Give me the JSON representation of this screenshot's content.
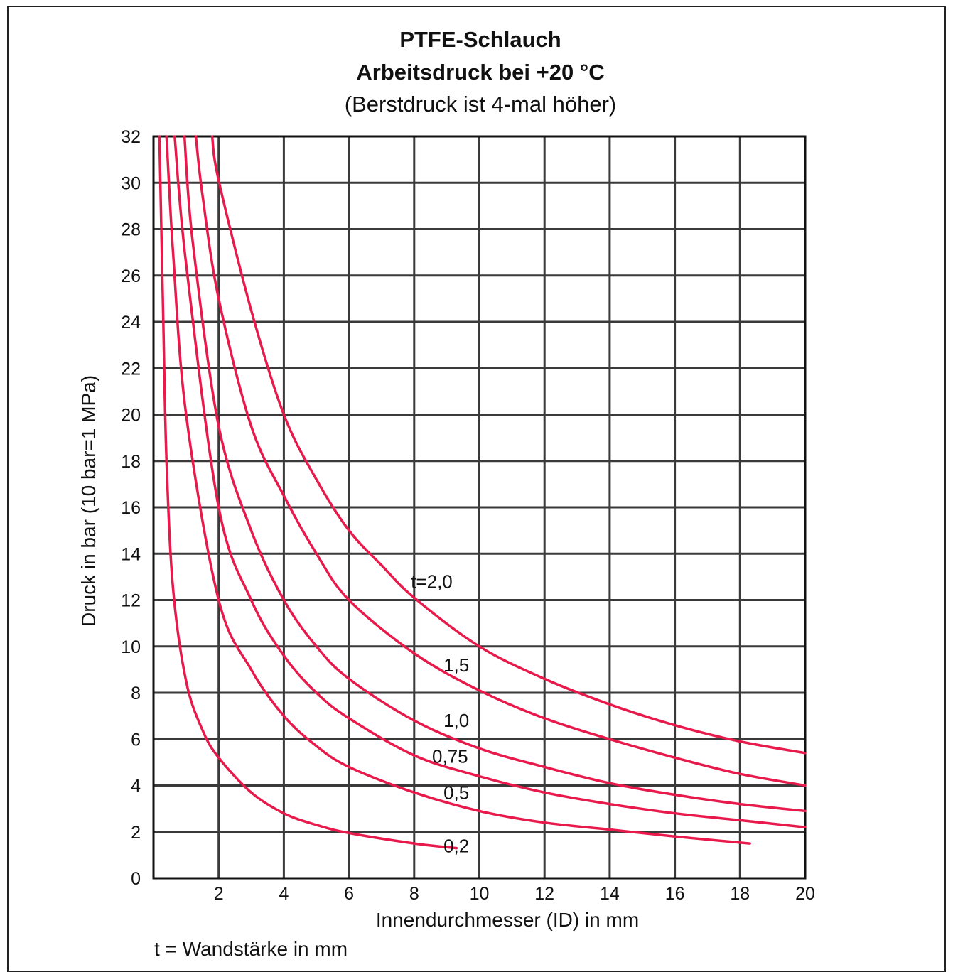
{
  "chart_data": {
    "type": "line",
    "title": "PTFE-Schlauch",
    "subtitle": "Arbeitsdruck bei +20 °C",
    "subtitle2": "(Berstdruck ist 4-mal höher)",
    "xlabel": "Innendurchmesser (ID) in mm",
    "ylabel": "Druck in bar  (10 bar=1 MPa)",
    "footnote": "t = Wandstärke in mm",
    "xlim": [
      0,
      20
    ],
    "ylim": [
      0,
      32
    ],
    "x_ticks": [
      "2",
      "4",
      "6",
      "8",
      "10",
      "12",
      "14",
      "16",
      "18",
      "20"
    ],
    "y_ticks": [
      "0",
      "2",
      "4",
      "6",
      "8",
      "10",
      "12",
      "14",
      "16",
      "18",
      "20",
      "22",
      "24",
      "26",
      "28",
      "30",
      "32"
    ],
    "grid": true,
    "line_color": "#e8194b",
    "series": [
      {
        "name": "t=2,0",
        "x": [
          1.8,
          2.0,
          3.0,
          4.0,
          5.0,
          6.0,
          7.0,
          8.0,
          10.0,
          12.0,
          14.0,
          16.0,
          18.0,
          20.0
        ],
        "y": [
          32,
          30.1,
          24.5,
          20,
          17.2,
          15,
          13.5,
          12.1,
          10,
          8.6,
          7.5,
          6.6,
          5.9,
          5.4
        ]
      },
      {
        "name": "1,5",
        "x": [
          1.3,
          1.5,
          2.0,
          3.0,
          4.0,
          5.0,
          6.0,
          8.0,
          10.0,
          12.0,
          14.0,
          16.0,
          18.0,
          20.0
        ],
        "y": [
          32,
          29.5,
          25,
          19.5,
          16.5,
          14,
          12,
          9.7,
          8.1,
          6.9,
          6.0,
          5.2,
          4.5,
          4.0
        ]
      },
      {
        "name": "1,0",
        "x": [
          0.95,
          1.2,
          2.0,
          3.0,
          4.0,
          5.0,
          6.0,
          8.0,
          10.0,
          12.0,
          14.0,
          16.0,
          18.0,
          20.0
        ],
        "y": [
          32,
          27.5,
          19.5,
          15,
          12,
          10,
          8.6,
          6.8,
          5.6,
          4.8,
          4.1,
          3.6,
          3.2,
          2.9
        ]
      },
      {
        "name": "0,75",
        "x": [
          0.65,
          1.0,
          2.0,
          3.0,
          4.0,
          5.0,
          6.0,
          8.0,
          10.0,
          12.0,
          14.0,
          16.0,
          18.0,
          20.0
        ],
        "y": [
          32,
          26.5,
          16,
          12,
          9.6,
          8.0,
          6.9,
          5.3,
          4.4,
          3.7,
          3.2,
          2.8,
          2.5,
          2.2
        ]
      },
      {
        "name": "0,5",
        "x": [
          0.4,
          0.6,
          1.0,
          2.0,
          3.0,
          4.0,
          5.0,
          6.0,
          8.0,
          10.0,
          12.0,
          14.0,
          16.0,
          18.3
        ],
        "y": [
          32,
          27,
          20,
          12,
          9,
          7,
          5.7,
          4.8,
          3.7,
          2.9,
          2.4,
          2.1,
          1.8,
          1.5
        ]
      },
      {
        "name": "0,2",
        "x": [
          0.18,
          0.3,
          0.4,
          0.6,
          1.0,
          1.5,
          2.0,
          3.0,
          4.0,
          5.0,
          6.0,
          8.0,
          9.3
        ],
        "y": [
          32,
          24,
          18,
          12.5,
          8.5,
          6.4,
          5.2,
          3.7,
          2.8,
          2.3,
          1.95,
          1.5,
          1.3
        ]
      }
    ],
    "curve_labels": [
      {
        "text": "t=2,0",
        "x": 7.9,
        "y": 12.8
      },
      {
        "text": "1,5",
        "x": 8.9,
        "y": 9.2
      },
      {
        "text": "1,0",
        "x": 8.9,
        "y": 6.8
      },
      {
        "text": "0,75",
        "x": 8.55,
        "y": 5.25
      },
      {
        "text": "0,5",
        "x": 8.9,
        "y": 3.7
      },
      {
        "text": "0,2",
        "x": 8.9,
        "y": 1.4
      }
    ]
  }
}
